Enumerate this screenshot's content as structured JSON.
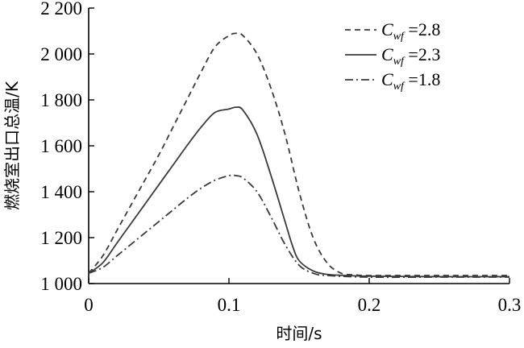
{
  "chart_data": {
    "type": "line",
    "xlabel": "时间/s",
    "ylabel": "燃烧室出口总温/K",
    "xlim": [
      0,
      0.3
    ],
    "ylim": [
      1000,
      2200
    ],
    "x_ticks": [
      0,
      0.1,
      0.2,
      0.3
    ],
    "x_tick_labels": [
      "0",
      "0.1",
      "0.2",
      "0.3"
    ],
    "y_ticks": [
      1000,
      1200,
      1400,
      1600,
      1800,
      2000,
      2200
    ],
    "y_tick_labels": [
      "1 000",
      "1 200",
      "1 400",
      "1 600",
      "1 800",
      "2 000",
      "2 200"
    ],
    "grid": false,
    "legend_position": "top-right",
    "series": [
      {
        "name": "Cwf=2.8",
        "legend_symbol": "C",
        "legend_subscript": "wf",
        "legend_value": "=2.8",
        "dash": "dashed",
        "x": [
          0,
          0.01,
          0.02,
          0.03,
          0.04,
          0.05,
          0.06,
          0.07,
          0.08,
          0.09,
          0.1,
          0.105,
          0.11,
          0.12,
          0.13,
          0.14,
          0.15,
          0.16,
          0.17,
          0.18,
          0.19,
          0.2,
          0.25,
          0.3
        ],
        "values": [
          1045,
          1120,
          1230,
          1340,
          1450,
          1560,
          1680,
          1800,
          1920,
          2030,
          2080,
          2090,
          2080,
          2000,
          1850,
          1650,
          1400,
          1200,
          1090,
          1045,
          1038,
          1035,
          1035,
          1035
        ]
      },
      {
        "name": "Cwf=2.3",
        "legend_symbol": "C",
        "legend_subscript": "wf",
        "legend_value": "=2.3",
        "dash": "solid",
        "x": [
          0,
          0.01,
          0.02,
          0.03,
          0.04,
          0.05,
          0.06,
          0.07,
          0.08,
          0.09,
          0.1,
          0.105,
          0.11,
          0.12,
          0.13,
          0.14,
          0.145,
          0.15,
          0.16,
          0.17,
          0.18,
          0.2,
          0.25,
          0.3
        ],
        "values": [
          1045,
          1090,
          1175,
          1260,
          1345,
          1430,
          1515,
          1600,
          1680,
          1745,
          1760,
          1768,
          1755,
          1650,
          1470,
          1270,
          1170,
          1100,
          1055,
          1040,
          1036,
          1032,
          1030,
          1030
        ]
      },
      {
        "name": "Cwf=1.8",
        "legend_symbol": "C",
        "legend_subscript": "wf",
        "legend_value": "=1.8",
        "dash": "dashdot",
        "x": [
          0,
          0.01,
          0.02,
          0.03,
          0.04,
          0.05,
          0.06,
          0.07,
          0.08,
          0.09,
          0.1,
          0.105,
          0.11,
          0.12,
          0.13,
          0.14,
          0.15,
          0.16,
          0.17,
          0.2,
          0.25,
          0.3
        ],
        "values": [
          1045,
          1070,
          1120,
          1170,
          1220,
          1270,
          1320,
          1370,
          1415,
          1450,
          1470,
          1470,
          1460,
          1400,
          1290,
          1170,
          1080,
          1045,
          1035,
          1028,
          1028,
          1028
        ]
      }
    ]
  }
}
